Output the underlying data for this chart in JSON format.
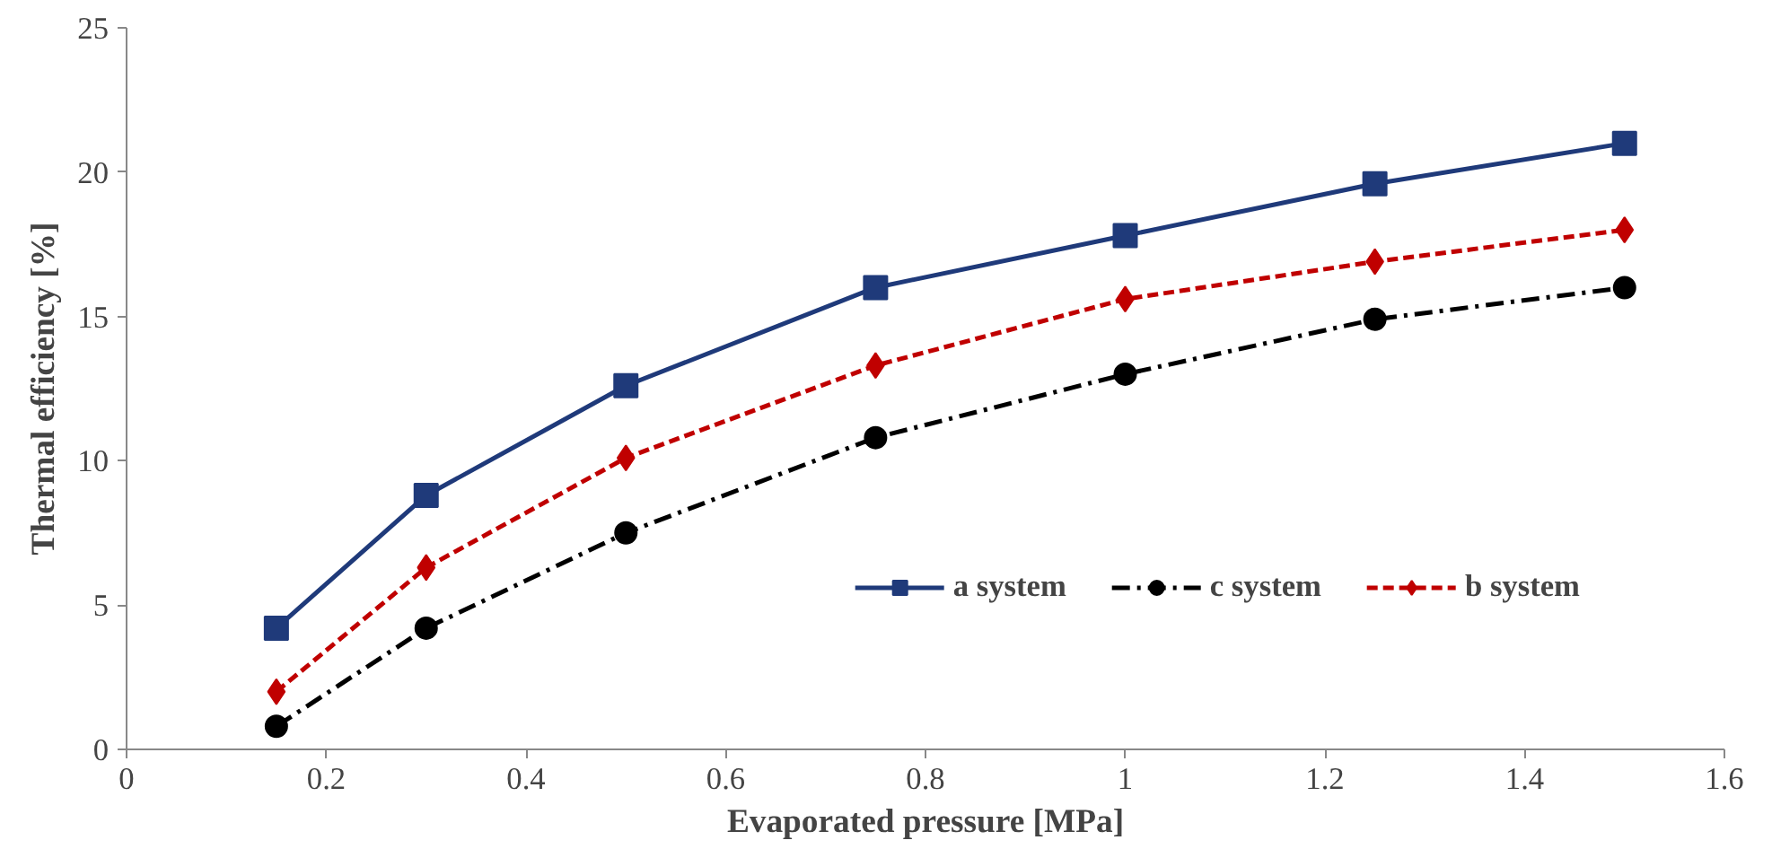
{
  "chart_data": {
    "type": "line",
    "xlabel": "Evaporated pressure [MPa]",
    "ylabel": "Thermal efficiency [%]",
    "x": [
      0.15,
      0.3,
      0.5,
      0.75,
      1,
      1.25,
      1.5
    ],
    "xlim": [
      0,
      1.6
    ],
    "xticks": [
      0,
      0.2,
      0.4,
      0.6,
      0.8,
      1,
      1.2,
      1.4,
      1.6
    ],
    "ylim": [
      0,
      25
    ],
    "yticks": [
      0,
      5,
      10,
      15,
      20,
      25
    ],
    "grid": false,
    "legend": "bottom right",
    "series": [
      {
        "name": "a system",
        "color": "#1f3a7a",
        "marker": "square",
        "line_style": "solid",
        "values": [
          4.2,
          8.8,
          12.6,
          16.0,
          17.8,
          19.6,
          21.0
        ]
      },
      {
        "name": "c system",
        "color": "#000000",
        "marker": "circle",
        "line_style": "dashdot",
        "values": [
          0.8,
          4.2,
          7.5,
          10.8,
          13.0,
          14.9,
          16.0
        ]
      },
      {
        "name": "b system",
        "color": "#c00000",
        "marker": "diamond",
        "line_style": "dashed",
        "values": [
          2.0,
          6.3,
          10.1,
          13.3,
          15.6,
          16.9,
          18.0
        ]
      }
    ]
  }
}
